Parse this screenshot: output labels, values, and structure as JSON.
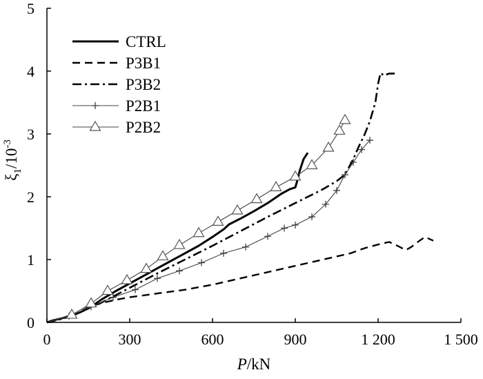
{
  "chart_data": {
    "type": "line",
    "title": "",
    "xlabel_italic": "P",
    "xlabel_rest": "/kN",
    "ylabel_main": "ξ",
    "ylabel_sub": "1",
    "ylabel_unit": "/10",
    "ylabel_exp": "-3",
    "xlim": [
      0,
      1500
    ],
    "ylim": [
      0,
      5
    ],
    "xticks": [
      0,
      300,
      600,
      900,
      1200,
      1500
    ],
    "xtick_labels": [
      "0",
      "300",
      "600",
      "900",
      "1 200",
      "1 500"
    ],
    "yticks": [
      0,
      1,
      2,
      3,
      4,
      5
    ],
    "ytick_labels": [
      "0",
      "1",
      "2",
      "3",
      "4",
      "5"
    ],
    "grid": false,
    "legend_position": "top-left",
    "series": [
      {
        "name": "CTRL",
        "style": "solid-thick",
        "marker": "none",
        "x": [
          0,
          20,
          50,
          80,
          120,
          160,
          200,
          250,
          300,
          350,
          400,
          450,
          500,
          550,
          600,
          640,
          660,
          700,
          750,
          800,
          850,
          880,
          900,
          910,
          915,
          930,
          945
        ],
        "y": [
          0,
          0.03,
          0.06,
          0.1,
          0.16,
          0.25,
          0.37,
          0.5,
          0.62,
          0.74,
          0.86,
          0.98,
          1.1,
          1.22,
          1.36,
          1.48,
          1.56,
          1.65,
          1.77,
          1.9,
          2.05,
          2.12,
          2.15,
          2.3,
          2.4,
          2.6,
          2.7
        ]
      },
      {
        "name": "P3B1",
        "style": "dashed",
        "marker": "none",
        "x": [
          0,
          30,
          70,
          100,
          120,
          140,
          170,
          200,
          250,
          300,
          400,
          500,
          600,
          700,
          800,
          900,
          1000,
          1100,
          1150,
          1200,
          1240,
          1270,
          1300,
          1320,
          1350,
          1370,
          1400
        ],
        "y": [
          0,
          0.04,
          0.08,
          0.12,
          0.17,
          0.22,
          0.27,
          0.31,
          0.36,
          0.4,
          0.46,
          0.52,
          0.6,
          0.7,
          0.8,
          0.9,
          1.0,
          1.1,
          1.18,
          1.24,
          1.28,
          1.22,
          1.15,
          1.2,
          1.3,
          1.36,
          1.3
        ]
      },
      {
        "name": "P3B2",
        "style": "dash-dot",
        "marker": "none",
        "x": [
          0,
          50,
          100,
          150,
          200,
          300,
          400,
          500,
          600,
          700,
          800,
          900,
          1000,
          1050,
          1080,
          1110,
          1130,
          1150,
          1170,
          1190,
          1200,
          1205,
          1210,
          1220,
          1240,
          1260
        ],
        "y": [
          0,
          0.05,
          0.12,
          0.22,
          0.32,
          0.55,
          0.78,
          1.0,
          1.22,
          1.45,
          1.68,
          1.9,
          2.12,
          2.25,
          2.35,
          2.6,
          2.8,
          2.98,
          3.2,
          3.5,
          3.8,
          3.9,
          3.97,
          3.93,
          3.96,
          3.96
        ]
      },
      {
        "name": "P2B1",
        "style": "solid-thin",
        "marker": "plus",
        "x": [
          0,
          80,
          160,
          240,
          320,
          400,
          480,
          560,
          640,
          720,
          800,
          860,
          900,
          960,
          1010,
          1050,
          1080,
          1110,
          1140,
          1170
        ],
        "y": [
          0,
          0.1,
          0.25,
          0.4,
          0.52,
          0.7,
          0.82,
          0.95,
          1.1,
          1.2,
          1.37,
          1.5,
          1.55,
          1.68,
          1.88,
          2.1,
          2.35,
          2.55,
          2.75,
          2.9
        ]
      },
      {
        "name": "P2B2",
        "style": "solid-thin",
        "marker": "triangle",
        "x": [
          0,
          90,
          160,
          220,
          290,
          360,
          420,
          480,
          550,
          620,
          690,
          760,
          830,
          900,
          960,
          1020,
          1060,
          1080
        ],
        "y": [
          0,
          0.12,
          0.3,
          0.5,
          0.67,
          0.85,
          1.05,
          1.23,
          1.42,
          1.6,
          1.78,
          1.96,
          2.15,
          2.32,
          2.5,
          2.78,
          3.05,
          3.22
        ]
      }
    ]
  }
}
